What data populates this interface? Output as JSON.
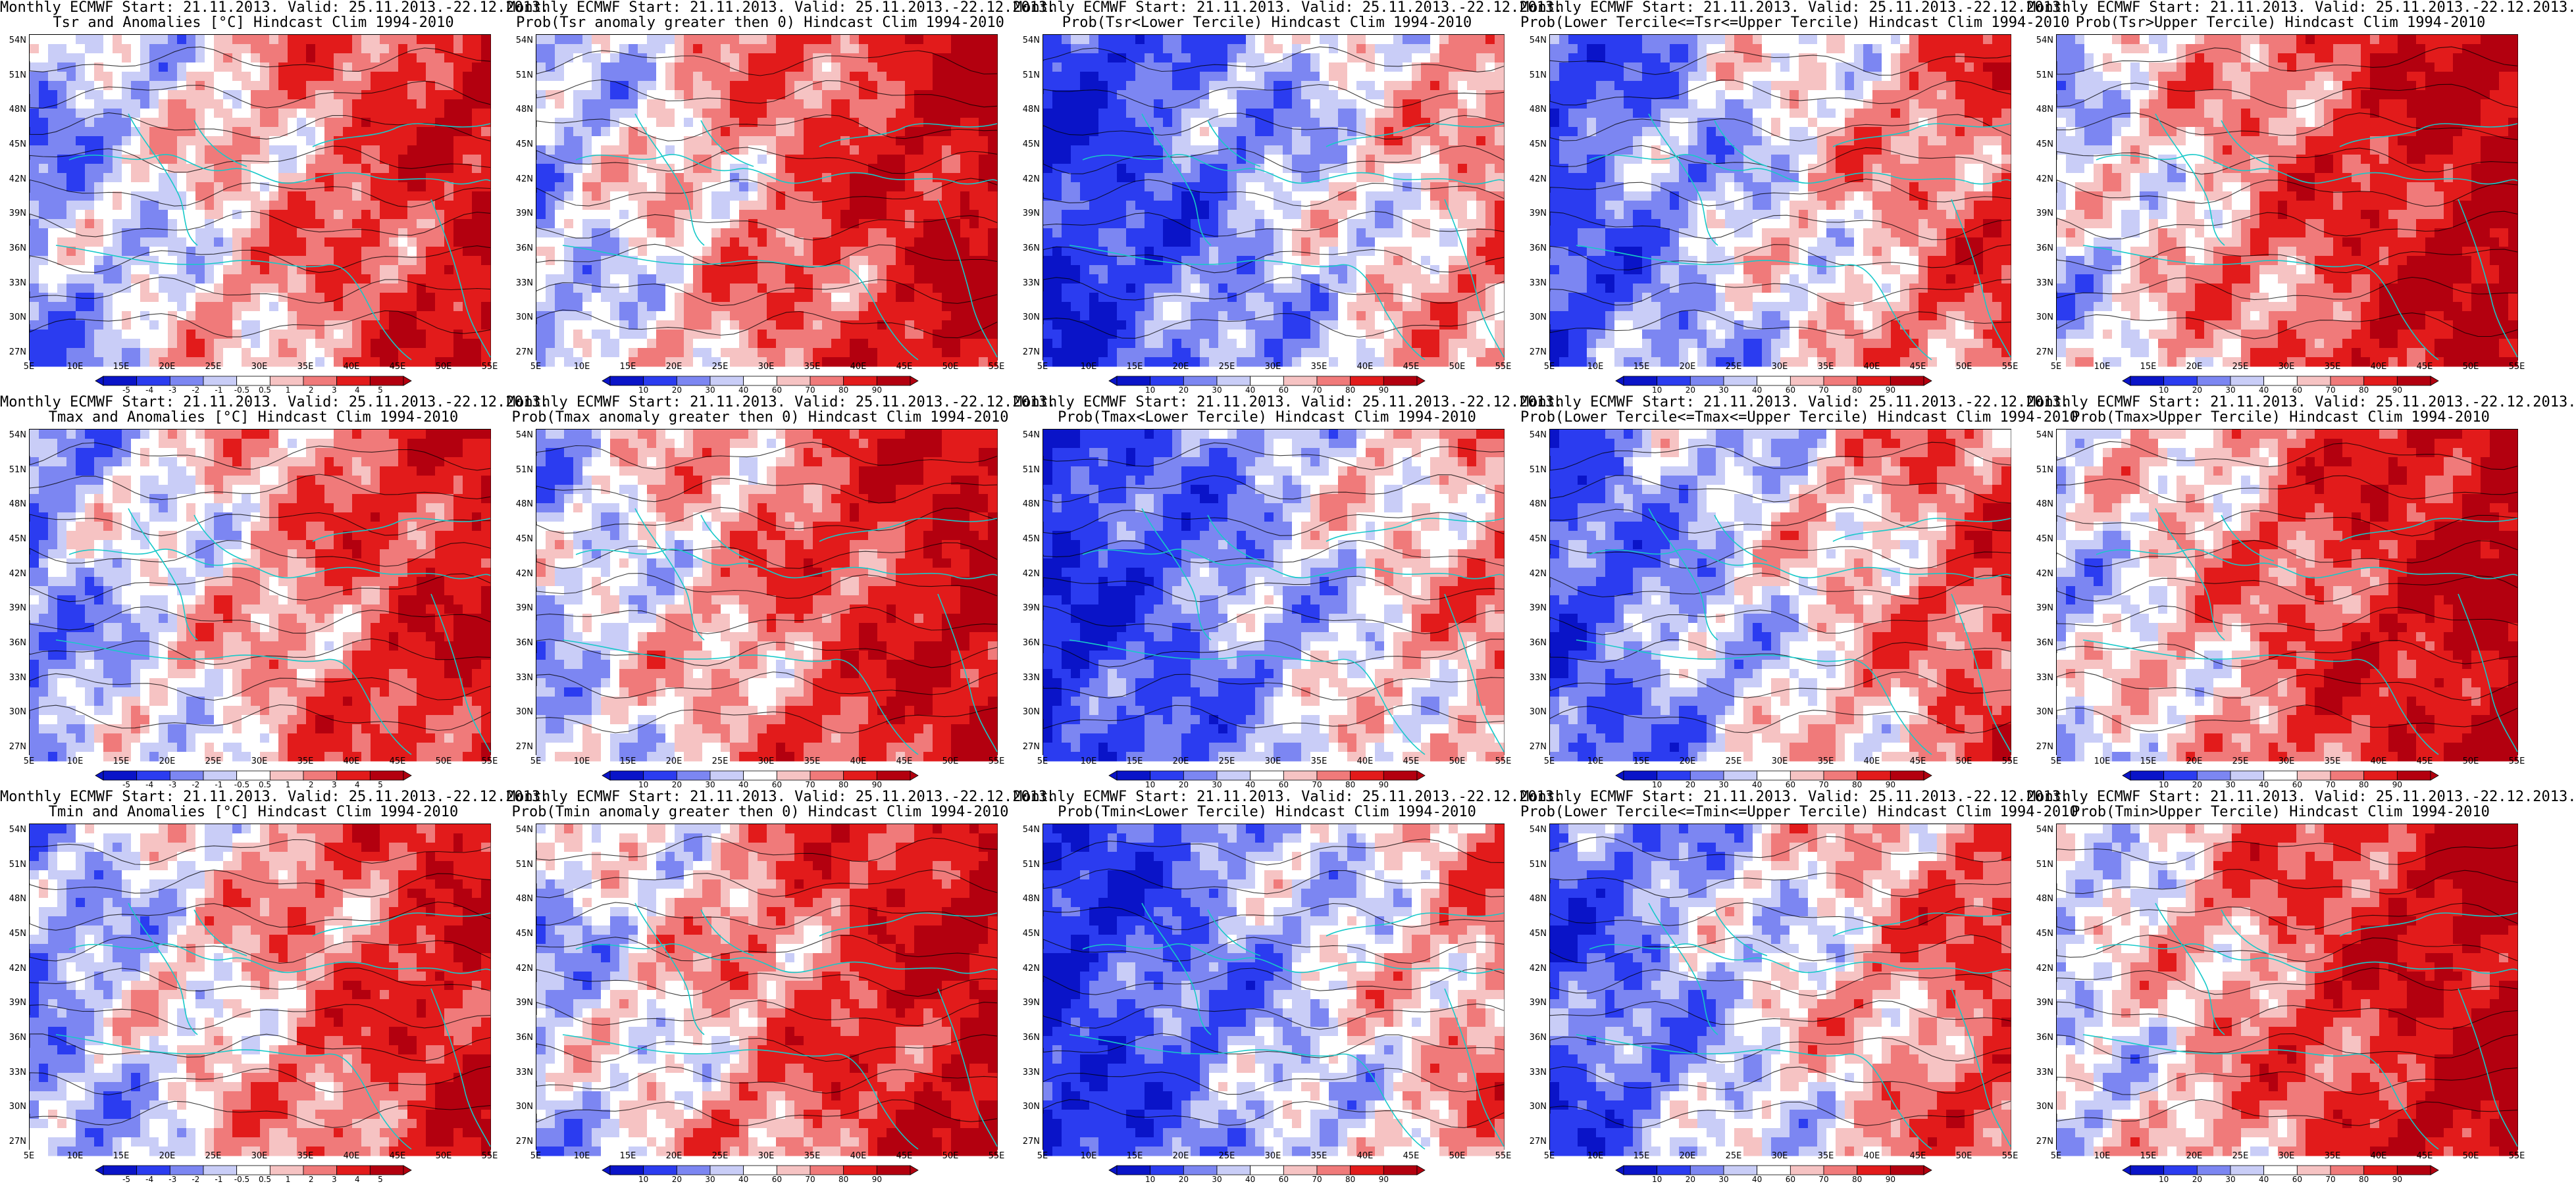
{
  "lat_labels": [
    "54N",
    "51N",
    "48N",
    "45N",
    "42N",
    "39N",
    "36N",
    "33N",
    "30N",
    "27N"
  ],
  "lon_labels": [
    "5E",
    "10E",
    "15E",
    "20E",
    "25E",
    "30E",
    "35E",
    "40E",
    "45E",
    "50E",
    "55E"
  ],
  "colors": {
    "blue_dark": "#0a14c8",
    "blue": "#2b3cf0",
    "blue_mid": "#7c86f2",
    "blue_light": "#c9cdf7",
    "white": "#ffffff",
    "red_light": "#f6c3c3",
    "red_mid": "#f07a7a",
    "red": "#e21b1b",
    "red_dark": "#b3000f",
    "coast": "#17c9c9",
    "contour": "#000000"
  },
  "colorbar_anom": [
    "-5",
    "-4",
    "-3",
    "-2",
    "-1",
    "-0.5",
    "0.5",
    "1",
    "2",
    "3",
    "4",
    "5"
  ],
  "colorbar_prob": [
    "10",
    "20",
    "30",
    "40",
    "60",
    "70",
    "80",
    "90"
  ],
  "panels": [
    {
      "title1": "Monthly ECMWF Start: 21.11.2013. Valid: 25.11.2013.-22.12.2013.",
      "title2": "Tsr and Anomalies [°C] Hindcast Clim 1994-2010",
      "kind": "anom",
      "bias": 0.2
    },
    {
      "title1": "Monthly ECMWF Start: 21.11.2013. Valid: 25.11.2013.-22.12.2013.",
      "title2": "Prob(Tsr anomaly greater then 0) Hindcast Clim 1994-2010",
      "kind": "prob",
      "bias": 0.35
    },
    {
      "title1": "Monthly ECMWF Start: 21.11.2013. Valid: 25.11.2013.-22.12.2013.",
      "title2": "Prob(Tsr<Lower Tercile) Hindcast Clim 1994-2010",
      "kind": "prob",
      "bias": -0.35
    },
    {
      "title1": "Monthly ECMWF Start: 21.11.2013. Valid: 25.11.2013.-22.12.2013.",
      "title2": "Prob(Lower Tercile<=Tsr<=Upper Tercile) Hindcast Clim 1994-2010",
      "kind": "prob",
      "bias": -0.1
    },
    {
      "title1": "Monthly ECMWF Start: 21.11.2013. Valid: 25.11.2013.-22.12.2013.",
      "title2": "Prob(Tsr>Upper Tercile) Hindcast Clim 1994-2010",
      "kind": "prob",
      "bias": 0.45
    },
    {
      "title1": "Monthly ECMWF Start: 21.11.2013. Valid: 25.11.2013.-22.12.2013.",
      "title2": "Tmax and Anomalies [°C] Hindcast Clim 1994-2010",
      "kind": "anom",
      "bias": 0.2
    },
    {
      "title1": "Monthly ECMWF Start: 21.11.2013. Valid: 25.11.2013.-22.12.2013.",
      "title2": "Prob(Tmax anomaly greater then 0) Hindcast Clim 1994-2010",
      "kind": "prob",
      "bias": 0.35
    },
    {
      "title1": "Monthly ECMWF Start: 21.11.2013. Valid: 25.11.2013.-22.12.2013.",
      "title2": "Prob(Tmax<Lower Tercile) Hindcast Clim 1994-2010",
      "kind": "prob",
      "bias": -0.35
    },
    {
      "title1": "Monthly ECMWF Start: 21.11.2013. Valid: 25.11.2013.-22.12.2013.",
      "title2": "Prob(Lower Tercile<=Tmax<=Upper Tercile) Hindcast Clim 1994-2010",
      "kind": "prob",
      "bias": -0.1
    },
    {
      "title1": "Monthly ECMWF Start: 21.11.2013. Valid: 25.11.2013.-22.12.2013.",
      "title2": "Prob(Tmax>Upper Tercile) Hindcast Clim 1994-2010",
      "kind": "prob",
      "bias": 0.45
    },
    {
      "title1": "Monthly ECMWF Start: 21.11.2013. Valid: 25.11.2013.-22.12.2013.",
      "title2": "Tmin and Anomalies [°C] Hindcast Clim 1994-2010",
      "kind": "anom",
      "bias": 0.2
    },
    {
      "title1": "Monthly ECMWF Start: 21.11.2013. Valid: 25.11.2013.-22.12.2013.",
      "title2": "Prob(Tmin anomaly greater then 0) Hindcast Clim 1994-2010",
      "kind": "prob",
      "bias": 0.35
    },
    {
      "title1": "Monthly ECMWF Start: 21.11.2013. Valid: 25.11.2013.-22.12.2013.",
      "title2": "Prob(Tmin<Lower Tercile) Hindcast Clim 1994-2010",
      "kind": "prob",
      "bias": -0.35
    },
    {
      "title1": "Monthly ECMWF Start: 21.11.2013. Valid: 25.11.2013.-22.12.2013.",
      "title2": "Prob(Lower Tercile<=Tmin<=Upper Tercile) Hindcast Clim 1994-2010",
      "kind": "prob",
      "bias": -0.1
    },
    {
      "title1": "Monthly ECMWF Start: 21.11.2013. Valid: 25.11.2013.-22.12.2013.",
      "title2": "Prob(Tmin>Upper Tercile) Hindcast Clim 1994-2010",
      "kind": "prob",
      "bias": 0.45
    }
  ]
}
